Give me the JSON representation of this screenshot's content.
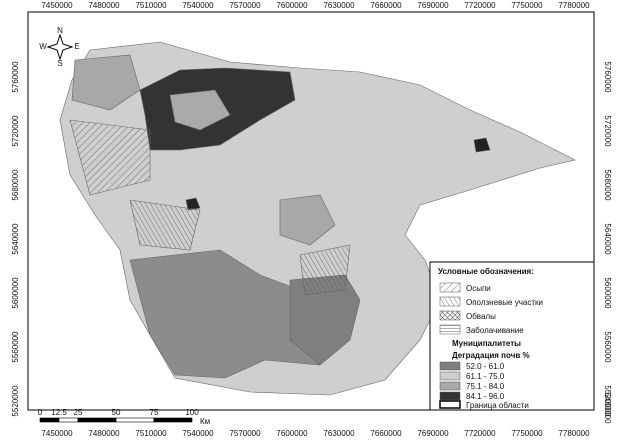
{
  "map": {
    "top_x_labels": [
      "7450000",
      "7480000",
      "7510000",
      "7540000",
      "7570000",
      "7600000",
      "7630000",
      "7660000",
      "7690000",
      "7720000",
      "7750000",
      "7780000"
    ],
    "bottom_x_labels": [
      "7450000",
      "7480000",
      "7510000",
      "7540000",
      "7570000",
      "7600000",
      "7630000",
      "7660000",
      "7690000",
      "7720000",
      "7750000",
      "7780000"
    ],
    "left_y_labels": [
      "5760000",
      "5720000",
      "5680000",
      "5640000",
      "5600000",
      "5560000",
      "5520000"
    ],
    "right_y_labels": [
      "5760000",
      "5720000",
      "5680000",
      "5640000",
      "5600000",
      "5560000",
      "5520000",
      "5480000"
    ],
    "compass": {
      "n": "N",
      "s": "S",
      "w": "W",
      "e": "E"
    },
    "scale": {
      "ticks": [
        "0",
        "12.5",
        "25",
        "50",
        "75",
        "100"
      ],
      "unit": "Км"
    },
    "legend": {
      "title": "Условные обозначения:",
      "hazards": [
        "Осыпи",
        "Оползневые участки",
        "Обвалы",
        "Заболачивание"
      ],
      "municipal_title": "Муниципалитеты",
      "degradation_title": "Деградация почв %",
      "classes": [
        "52.0 - 61.0",
        "61.1 - 75.0",
        "75.1 - 84.0",
        "84.1 - 96.0"
      ],
      "boundary": "Граница области"
    }
  }
}
